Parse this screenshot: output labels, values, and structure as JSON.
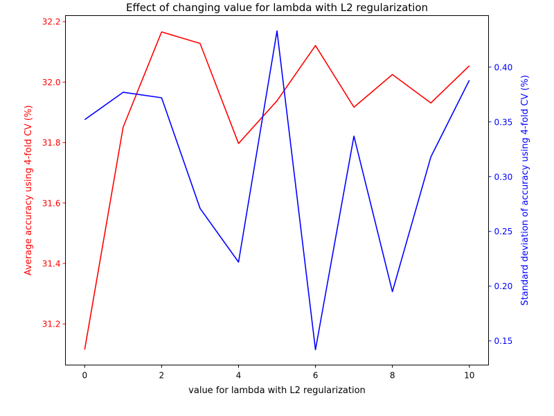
{
  "chart_data": {
    "type": "line",
    "title": "Effect of changing value for lambda with L2 regularization",
    "xlabel": "value for lambda with L2 regularization",
    "ylabel_left": "Average accuracy using 4-fold CV (%)",
    "ylabel_right": "Standard deviation of accuracy using 4-fold CV (%)",
    "x": [
      0,
      1,
      2,
      3,
      4,
      5,
      6,
      7,
      8,
      9,
      10
    ],
    "x_ticks": [
      0,
      2,
      4,
      6,
      8,
      10
    ],
    "x_tick_labels": [
      "0",
      "2",
      "4",
      "6",
      "8",
      "10"
    ],
    "xlim": [
      -0.5,
      10.5
    ],
    "grid": false,
    "left_axis": {
      "color": "#ff0000",
      "ylim": [
        31.064,
        32.22
      ],
      "ticks": [
        31.2,
        31.4,
        31.6,
        31.8,
        32.0,
        32.2
      ],
      "tick_labels": [
        "31.2",
        "31.4",
        "31.6",
        "31.8",
        "32.0",
        "32.2"
      ]
    },
    "right_axis": {
      "color": "#0000ff",
      "ylim": [
        0.128,
        0.447
      ],
      "ticks": [
        0.15,
        0.2,
        0.25,
        0.3,
        0.35,
        0.4
      ],
      "tick_labels": [
        "0.15",
        "0.20",
        "0.25",
        "0.30",
        "0.35",
        "0.40"
      ]
    },
    "series": [
      {
        "axis": "left",
        "color": "#ff0000",
        "values": [
          31.115,
          31.851,
          32.166,
          32.128,
          31.797,
          31.938,
          32.121,
          31.917,
          32.025,
          31.931,
          32.054
        ]
      },
      {
        "axis": "right",
        "color": "#0000ff",
        "values": [
          0.352,
          0.377,
          0.372,
          0.271,
          0.222,
          0.433,
          0.142,
          0.337,
          0.195,
          0.318,
          0.388
        ]
      }
    ]
  }
}
